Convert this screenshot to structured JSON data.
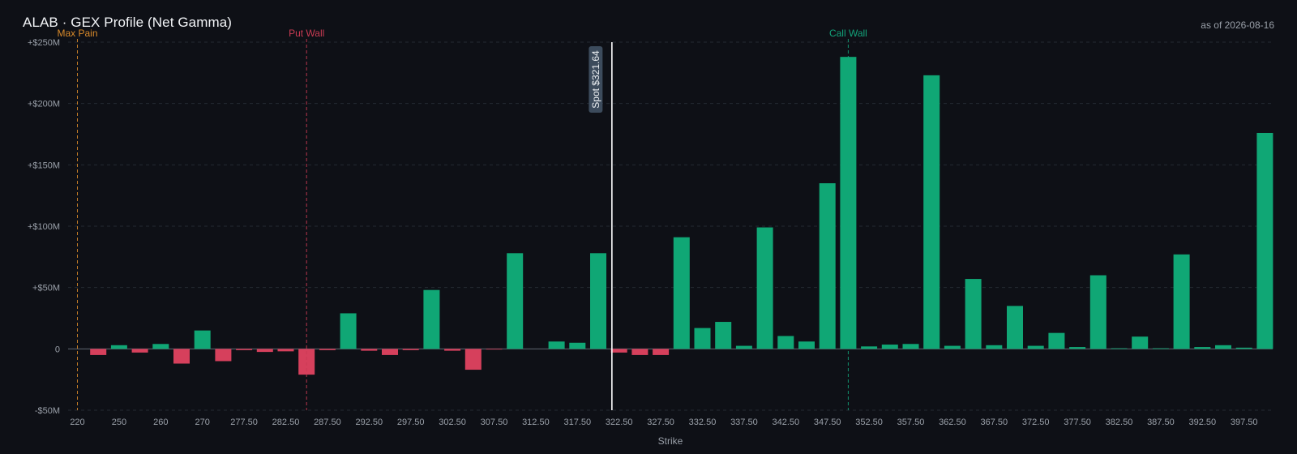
{
  "header": {
    "title": "ALAB · GEX Profile (Net Gamma)",
    "as_of": "as of 2026-08-16"
  },
  "colors": {
    "positive": "#10a775",
    "negative": "#d6405c",
    "max_pain": "#d98a2a",
    "put_wall": "#c93b53",
    "call_wall": "#13a37a",
    "spot_line": "#ffffff",
    "spot_badge": "#3c4b5c",
    "grid": "#2a3139",
    "background": "#0e1016"
  },
  "chart_data": {
    "type": "bar",
    "title": "ALAB · GEX Profile (Net Gamma)",
    "xlabel": "Strike",
    "ylabel": "",
    "ylim": [
      -50,
      250
    ],
    "y_ticks": [
      -50,
      0,
      50,
      100,
      150,
      200,
      250
    ],
    "y_tick_labels": [
      "-$50M",
      "0",
      "+$50M",
      "+$100M",
      "+$150M",
      "+$200M",
      "+$250M"
    ],
    "x_tick_labels": [
      "220",
      "250",
      "260",
      "270",
      "277.50",
      "282.50",
      "287.50",
      "292.50",
      "297.50",
      "302.50",
      "307.50",
      "312.50",
      "317.50",
      "322.50",
      "327.50",
      "332.50",
      "337.50",
      "342.50",
      "347.50",
      "352.50",
      "357.50",
      "362.50",
      "367.50",
      "372.50",
      "377.50",
      "382.50",
      "387.50",
      "392.50",
      "397.50"
    ],
    "categories": [
      "220",
      "245",
      "250",
      "255",
      "260",
      "265",
      "270",
      "275",
      "277.50",
      "280",
      "282.50",
      "285",
      "287.50",
      "290",
      "292.50",
      "295",
      "297.50",
      "300",
      "302.50",
      "305",
      "307.50",
      "310",
      "312.50",
      "315",
      "317.50",
      "320",
      "322.50",
      "325",
      "327.50",
      "330",
      "332.50",
      "335",
      "337.50",
      "340",
      "342.50",
      "345",
      "347.50",
      "350",
      "352.50",
      "355",
      "357.50",
      "360",
      "362.50",
      "365",
      "367.50",
      "370",
      "372.50",
      "375",
      "377.50",
      "380",
      "382.50",
      "385",
      "387.50",
      "390",
      "392.50",
      "395",
      "397.50",
      "400"
    ],
    "values": [
      0,
      -5,
      3,
      -3,
      4,
      -12,
      15,
      -10,
      -1,
      -2.5,
      -2,
      -21,
      -1,
      29,
      -1.5,
      -5,
      -1,
      48,
      -1.5,
      -17,
      -0.5,
      78,
      0,
      6,
      5,
      78,
      -3,
      -5,
      -5,
      91,
      17,
      22,
      2.5,
      99,
      10.5,
      6,
      135,
      238,
      2,
      3.5,
      4,
      223,
      2.5,
      57,
      3,
      35,
      2.5,
      13,
      1.5,
      60,
      0.5,
      10,
      0.5,
      77,
      1.5,
      3,
      1,
      176
    ],
    "reference_lines": [
      {
        "name": "Max Pain",
        "x": "220"
      },
      {
        "name": "Put Wall",
        "x": "285"
      },
      {
        "name": "Call Wall",
        "x": "350"
      }
    ],
    "spot": {
      "label": "Spot $321.64",
      "value": 321.64
    },
    "grid": true,
    "legend": "none"
  }
}
